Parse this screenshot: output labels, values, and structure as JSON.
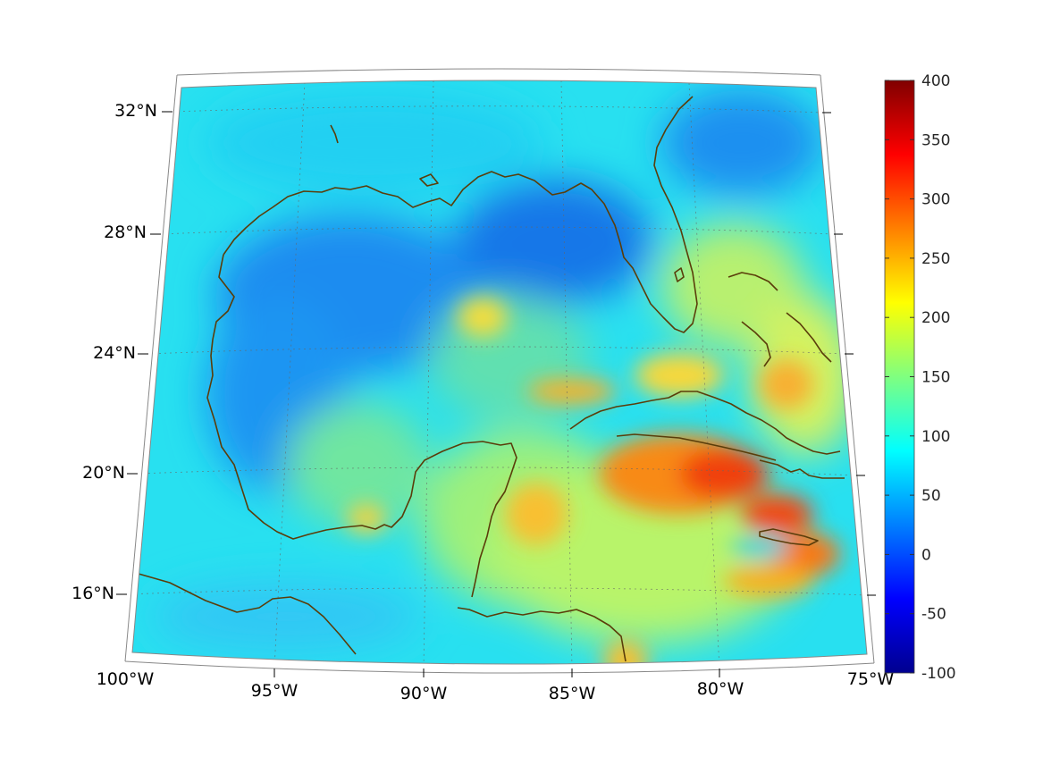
{
  "map": {
    "lat_labels": [
      "32°N",
      "28°N",
      "24°N",
      "20°N",
      "16°N"
    ],
    "lon_labels": [
      "100°W",
      "95°W",
      "90°W",
      "85°W",
      "80°W",
      "75°W"
    ],
    "coastline_color": "#5a3d0a",
    "grid": "dotted"
  },
  "colorbar": {
    "colormap": "jet",
    "min": -100,
    "max": 400,
    "tick_labels": [
      "400",
      "350",
      "300",
      "250",
      "200",
      "150",
      "100",
      "50",
      "0",
      "-50",
      "-100"
    ]
  },
  "chart_data": {
    "type": "heatmap",
    "projection": "conic",
    "lat_range_deg": [
      14,
      33
    ],
    "lon_range_deg": [
      -100,
      -75
    ],
    "value_range": [
      -100,
      400
    ]
  }
}
